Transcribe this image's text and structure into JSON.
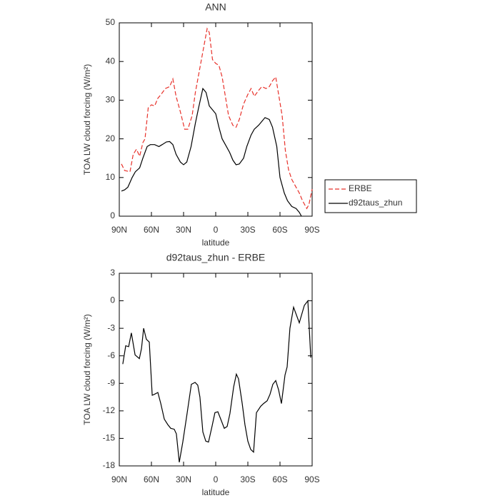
{
  "chart_data": [
    {
      "type": "line",
      "title": "ANN",
      "xlabel": "latitude",
      "ylabel": "TOA LW cloud forcing (W/m²)",
      "xlim": [
        90,
        -90
      ],
      "ylim": [
        0,
        50
      ],
      "xticks": [
        {
          "value": 90,
          "label": "90N"
        },
        {
          "value": 60,
          "label": "60N"
        },
        {
          "value": 30,
          "label": "30N"
        },
        0,
        {
          "value": -30,
          "label": "30S"
        },
        {
          "value": -60,
          "label": "60S"
        },
        {
          "value": -90,
          "label": "90S"
        }
      ],
      "yticks": [
        0,
        10,
        20,
        30,
        40,
        50
      ],
      "legend": "right",
      "series": [
        {
          "name": "ERBE",
          "color": "#e8322b",
          "linestyle": "dashed",
          "x": [
            88,
            85,
            80,
            77,
            74,
            71,
            68,
            66,
            63,
            60,
            57,
            54,
            51,
            47,
            43,
            40,
            37,
            33,
            29,
            26,
            22,
            19,
            15,
            11,
            8,
            6,
            3,
            0,
            -3,
            -6,
            -9,
            -12,
            -16,
            -19,
            -22,
            -26,
            -30,
            -33,
            -36,
            -40,
            -43,
            -47,
            -50,
            -53,
            -56,
            -59,
            -62,
            -65,
            -68,
            -71,
            -75,
            -78,
            -81,
            -85,
            -87,
            -90
          ],
          "values": [
            13.5,
            11.8,
            11.5,
            16,
            17.3,
            15.5,
            19,
            20,
            28,
            28.8,
            28.5,
            30.5,
            31.5,
            33,
            33.5,
            35.5,
            31,
            27,
            22.5,
            22.5,
            26,
            32,
            38,
            44,
            48.5,
            47.5,
            40.5,
            39.5,
            39,
            36,
            31,
            26,
            23.5,
            23,
            25,
            29,
            31.5,
            33,
            31,
            32.5,
            33.5,
            33,
            33.5,
            35,
            36,
            31,
            26,
            17,
            12,
            9.5,
            7.5,
            6,
            4,
            2,
            3,
            7
          ]
        },
        {
          "name": "d92taus_zhun",
          "color": "#000000",
          "linestyle": "solid",
          "x": [
            88,
            85,
            82,
            78,
            75,
            71,
            68,
            64,
            61,
            57,
            53,
            50,
            46,
            43,
            40,
            37,
            33,
            30,
            27,
            23,
            19,
            16,
            12,
            9,
            6,
            3,
            0,
            -3,
            -6,
            -9,
            -13,
            -16,
            -19,
            -22,
            -26,
            -29,
            -33,
            -36,
            -40,
            -43,
            -46,
            -50,
            -53,
            -57,
            -60,
            -64,
            -67,
            -71,
            -75,
            -78,
            -80
          ],
          "values": [
            6.5,
            6.8,
            7.5,
            10,
            11.5,
            12.5,
            15,
            18,
            18.5,
            18.5,
            18,
            18.5,
            19.2,
            19.3,
            18.5,
            16,
            14,
            13.3,
            14,
            18,
            24,
            28,
            33,
            32,
            28.5,
            27.5,
            26.5,
            23,
            20,
            18.5,
            16.5,
            14.5,
            13.3,
            13.5,
            15,
            18,
            21,
            22.5,
            23.5,
            24.5,
            25.5,
            25,
            23,
            18,
            10,
            6,
            4,
            2.5,
            2,
            1,
            0
          ]
        }
      ]
    },
    {
      "type": "line",
      "title": "d92taus_zhun - ERBE",
      "xlabel": "latitude",
      "ylabel": "TOA LW cloud forcing (W/m²)",
      "xlim": [
        90,
        -90
      ],
      "ylim": [
        -18,
        3
      ],
      "xticks": [
        {
          "value": 90,
          "label": "90N"
        },
        {
          "value": 60,
          "label": "60N"
        },
        {
          "value": 30,
          "label": "30N"
        },
        0,
        {
          "value": -30,
          "label": "30S"
        },
        {
          "value": -60,
          "label": "60S"
        },
        {
          "value": -90,
          "label": "90S"
        }
      ],
      "yticks": [
        3,
        0,
        -3,
        -6,
        -9,
        -12,
        -15,
        -18
      ],
      "color": "#000000",
      "x": [
        86.7,
        84,
        81.3,
        78.7,
        75.3,
        71.3,
        69.3,
        67.3,
        64.7,
        62,
        59.3,
        57.3,
        54,
        51.3,
        48,
        44.7,
        42,
        38.7,
        36.7,
        34,
        30.7,
        26.7,
        22.7,
        19.3,
        16.7,
        14.7,
        12,
        9.3,
        6.7,
        3.3,
        0.7,
        -2,
        -4.7,
        -8,
        -10.7,
        -13.3,
        -16.7,
        -19.3,
        -21.3,
        -24.7,
        -27.3,
        -30,
        -32.7,
        -35.3,
        -38,
        -42,
        -44.7,
        -48,
        -50.7,
        -53.3,
        -56,
        -58.7,
        -61.3,
        -64.7,
        -66.7,
        -69.3,
        -72.7,
        -78,
        -82.7,
        -86,
        -88.7
      ],
      "values": [
        -6.9,
        -4.9,
        -5.0,
        -3.5,
        -5.9,
        -6.3,
        -5.2,
        -3.0,
        -4.2,
        -4.5,
        -10.3,
        -10.2,
        -10.0,
        -11.2,
        -12.9,
        -13.5,
        -13.9,
        -14.0,
        -14.5,
        -17.6,
        -15.4,
        -12.3,
        -9.1,
        -8.9,
        -9.2,
        -10.5,
        -14.3,
        -15.3,
        -15.4,
        -13.6,
        -12.2,
        -12.1,
        -12.9,
        -13.9,
        -13.7,
        -12.3,
        -9.4,
        -8.0,
        -8.5,
        -11.2,
        -13.5,
        -15.3,
        -16.2,
        -16.5,
        -12.2,
        -11.5,
        -11.2,
        -10.9,
        -10.2,
        -9.1,
        -8.7,
        -9.7,
        -11.2,
        -8.1,
        -7.2,
        -3.0,
        -0.7,
        -2.4,
        -0.5,
        0.0,
        -6.2
      ]
    }
  ]
}
